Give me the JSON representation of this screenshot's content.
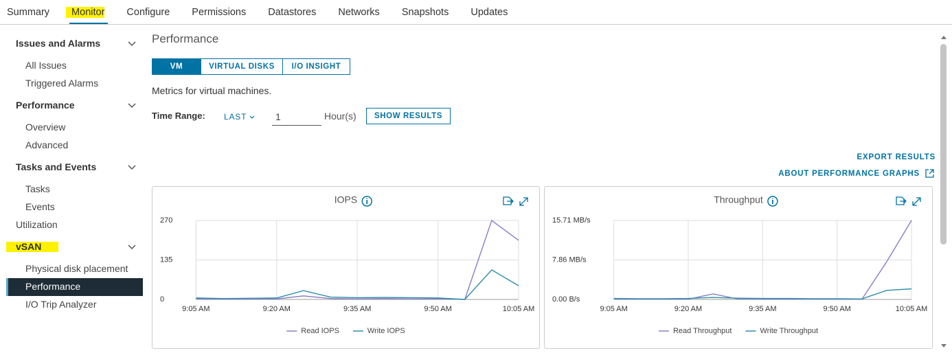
{
  "tabs": [
    "Summary",
    "Monitor",
    "Configure",
    "Permissions",
    "Datastores",
    "Networks",
    "Snapshots",
    "Updates"
  ],
  "sidebar": [
    {
      "title": "Issues and Alarms",
      "items": [
        "All Issues",
        "Triggered Alarms"
      ]
    },
    {
      "title": "Performance",
      "items": [
        "Overview",
        "Advanced"
      ]
    },
    {
      "title": "Tasks and Events",
      "items": [
        "Tasks",
        "Events"
      ]
    },
    {
      "title": "Utilization"
    },
    {
      "title": "vSAN",
      "items": [
        "Physical disk placement",
        "Performance",
        "I/O Trip Analyzer"
      ]
    }
  ],
  "panel": {
    "title": "Performance",
    "view_buttons": [
      "VM",
      "VIRTUAL DISKS",
      "I/O INSIGHT"
    ],
    "description": "Metrics for virtual machines.",
    "time_range_label": "Time Range:",
    "range_mode": "LAST",
    "range_value": "1",
    "range_unit": "Hour(s)",
    "show_button": "SHOW RESULTS",
    "export": "EXPORT RESULTS",
    "about": "ABOUT PERFORMANCE GRAPHS"
  },
  "chart_data": [
    {
      "type": "line",
      "title": "IOPS",
      "categories": [
        "9:05 AM",
        null,
        null,
        "9:20 AM",
        null,
        null,
        "9:35 AM",
        null,
        null,
        "9:50 AM",
        null,
        null,
        "10:05 AM"
      ],
      "series": [
        {
          "name": "Read IOPS",
          "color": "#8a7cc6",
          "values": [
            2,
            1,
            1,
            2,
            12,
            3,
            2,
            3,
            2,
            2,
            0,
            270,
            202
          ]
        },
        {
          "name": "Write IOPS",
          "color": "#2e8ea8",
          "values": [
            5,
            3,
            4,
            5,
            30,
            8,
            6,
            7,
            6,
            5,
            0,
            101,
            47
          ]
        }
      ],
      "ylim": [
        0,
        270
      ],
      "yticks": [
        0,
        135,
        270
      ],
      "grid": true
    },
    {
      "type": "line",
      "title": "Throughput",
      "categories": [
        "9:05 AM",
        null,
        null,
        "9:20 AM",
        null,
        null,
        "9:35 AM",
        null,
        null,
        "9:50 AM",
        null,
        null,
        "10:05 AM"
      ],
      "series": [
        {
          "name": "Read Throughput",
          "color": "#8a7cc6",
          "values": [
            0.05,
            0.05,
            0.05,
            0.05,
            1.1,
            0.1,
            0.05,
            0.05,
            0.05,
            0.05,
            0.02,
            7.5,
            15.71
          ]
        },
        {
          "name": "Write Throughput",
          "color": "#2e8ea8",
          "values": [
            0.2,
            0.15,
            0.15,
            0.2,
            0.4,
            0.25,
            0.2,
            0.2,
            0.15,
            0.15,
            0.1,
            1.8,
            2.1
          ]
        }
      ],
      "ylim": [
        0,
        15.71
      ],
      "yticks": [
        {
          "value": 0,
          "label": "0.00 B/s"
        },
        {
          "value": 7.86,
          "label": "7.86 MB/s"
        },
        {
          "value": 15.71,
          "label": "15.71 MB/s"
        }
      ],
      "grid": true
    }
  ]
}
